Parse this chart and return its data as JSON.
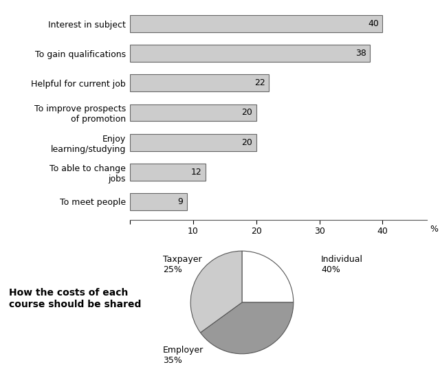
{
  "bar_categories": [
    "Interest in subject",
    "To gain qualifications",
    "Helpful for current job",
    "To improve prospects\nof promotion",
    "Enjoy\nlearning/studying",
    "To able to change\njobs",
    "To meet people"
  ],
  "bar_values": [
    40,
    38,
    22,
    20,
    20,
    12,
    9
  ],
  "bar_color": "#cccccc",
  "bar_edge_color": "#666666",
  "xlabel": "%",
  "xlim": [
    0,
    47
  ],
  "xticks": [
    0,
    10,
    20,
    30,
    40
  ],
  "pie_sizes": [
    25,
    40,
    35
  ],
  "pie_colors": [
    "#ffffff",
    "#999999",
    "#cccccc"
  ],
  "pie_edge_color": "#555555",
  "pie_title": "How the costs of each\ncourse should be shared",
  "pie_startangle": 90,
  "background_color": "#ffffff",
  "label_fontsize": 9,
  "tick_fontsize": 9,
  "value_fontsize": 9,
  "pie_title_fontsize": 10
}
